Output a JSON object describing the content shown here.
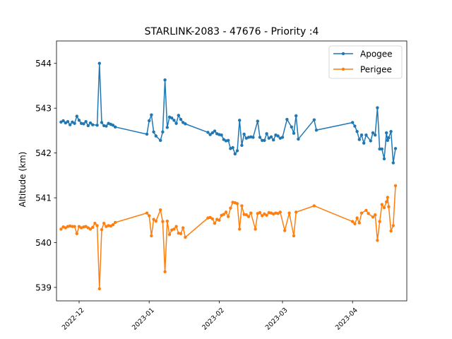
{
  "chart_data": {
    "type": "line",
    "title": "STARLINK-2083 - 47676 - Priority :4",
    "xlabel": "",
    "ylabel": "Altitude (km)",
    "xlim": [
      "2022-11-21",
      "2023-04-25"
    ],
    "ylim": [
      538.7,
      544.5
    ],
    "x_ticks": [
      "2022-12",
      "2023-01",
      "2023-02",
      "2023-03",
      "2023-04"
    ],
    "y_ticks": [
      539,
      540,
      541,
      542,
      543,
      544
    ],
    "legend_position": "top-right",
    "grid": false,
    "series": [
      {
        "name": "Apogee",
        "color": "#1f77b4",
        "points": [
          [
            "2022-11-23",
            542.69
          ],
          [
            "2022-11-24",
            542.72
          ],
          [
            "2022-11-25",
            542.67
          ],
          [
            "2022-11-26",
            542.7
          ],
          [
            "2022-11-27",
            542.63
          ],
          [
            "2022-11-28",
            542.69
          ],
          [
            "2022-11-29",
            542.66
          ],
          [
            "2022-11-30",
            542.82
          ],
          [
            "2022-12-01",
            542.73
          ],
          [
            "2022-12-02",
            542.66
          ],
          [
            "2022-12-03",
            542.65
          ],
          [
            "2022-12-04",
            542.7
          ],
          [
            "2022-12-05",
            542.61
          ],
          [
            "2022-12-06",
            542.67
          ],
          [
            "2022-12-07",
            542.63
          ],
          [
            "2022-12-09",
            542.62
          ],
          [
            "2022-12-10",
            544.0
          ],
          [
            "2022-12-11",
            542.68
          ],
          [
            "2022-12-12",
            542.61
          ],
          [
            "2022-12-13",
            542.6
          ],
          [
            "2022-12-14",
            542.66
          ],
          [
            "2022-12-15",
            542.64
          ],
          [
            "2022-12-16",
            542.62
          ],
          [
            "2022-12-17",
            542.58
          ],
          [
            "2022-12-31",
            542.42
          ],
          [
            "2023-01-01",
            542.72
          ],
          [
            "2023-01-02",
            542.85
          ],
          [
            "2023-01-03",
            542.47
          ],
          [
            "2023-01-04",
            542.38
          ],
          [
            "2023-01-06",
            542.28
          ],
          [
            "2023-01-07",
            542.47
          ],
          [
            "2023-01-08",
            543.63
          ],
          [
            "2023-01-09",
            542.57
          ],
          [
            "2023-01-10",
            542.8
          ],
          [
            "2023-01-11",
            542.78
          ],
          [
            "2023-01-12",
            542.73
          ],
          [
            "2023-01-13",
            542.66
          ],
          [
            "2023-01-14",
            542.84
          ],
          [
            "2023-01-15",
            542.75
          ],
          [
            "2023-01-16",
            542.68
          ],
          [
            "2023-01-17",
            542.65
          ],
          [
            "2023-01-27",
            542.46
          ],
          [
            "2023-01-28",
            542.41
          ],
          [
            "2023-01-29",
            542.45
          ],
          [
            "2023-01-30",
            542.49
          ],
          [
            "2023-01-31",
            542.43
          ],
          [
            "2023-02-01",
            542.41
          ],
          [
            "2023-02-02",
            542.4
          ],
          [
            "2023-02-03",
            542.3
          ],
          [
            "2023-02-04",
            542.27
          ],
          [
            "2023-02-05",
            542.28
          ],
          [
            "2023-02-06",
            542.1
          ],
          [
            "2023-02-07",
            542.12
          ],
          [
            "2023-02-08",
            541.98
          ],
          [
            "2023-02-09",
            542.05
          ],
          [
            "2023-02-10",
            542.73
          ],
          [
            "2023-02-11",
            542.17
          ],
          [
            "2023-02-12",
            542.42
          ],
          [
            "2023-02-13",
            542.33
          ],
          [
            "2023-02-14",
            542.35
          ],
          [
            "2023-02-15",
            542.36
          ],
          [
            "2023-02-16",
            542.35
          ],
          [
            "2023-02-18",
            542.71
          ],
          [
            "2023-02-19",
            542.35
          ],
          [
            "2023-02-20",
            542.28
          ],
          [
            "2023-02-21",
            542.28
          ],
          [
            "2023-02-22",
            542.43
          ],
          [
            "2023-02-23",
            542.33
          ],
          [
            "2023-02-24",
            542.36
          ],
          [
            "2023-02-25",
            542.29
          ],
          [
            "2023-02-26",
            542.4
          ],
          [
            "2023-02-27",
            542.38
          ],
          [
            "2023-02-28",
            542.33
          ],
          [
            "2023-03-01",
            542.35
          ],
          [
            "2023-03-03",
            542.75
          ],
          [
            "2023-03-05",
            542.58
          ],
          [
            "2023-03-06",
            542.44
          ],
          [
            "2023-03-07",
            542.83
          ],
          [
            "2023-03-08",
            542.31
          ],
          [
            "2023-03-15",
            542.74
          ],
          [
            "2023-03-16",
            542.51
          ],
          [
            "2023-04-01",
            542.68
          ],
          [
            "2023-04-02",
            542.6
          ],
          [
            "2023-04-03",
            542.48
          ],
          [
            "2023-04-04",
            542.3
          ],
          [
            "2023-04-05",
            542.4
          ],
          [
            "2023-04-06",
            542.22
          ],
          [
            "2023-04-07",
            542.4
          ],
          [
            "2023-04-09",
            542.27
          ],
          [
            "2023-04-10",
            542.45
          ],
          [
            "2023-04-11",
            542.4
          ],
          [
            "2023-04-12",
            543.01
          ],
          [
            "2023-04-13",
            542.09
          ],
          [
            "2023-04-14",
            542.09
          ],
          [
            "2023-04-15",
            541.87
          ],
          [
            "2023-04-16",
            542.45
          ],
          [
            "2023-04-16T12",
            542.28
          ],
          [
            "2023-04-17",
            542.34
          ],
          [
            "2023-04-18",
            542.48
          ],
          [
            "2023-04-19",
            541.78
          ],
          [
            "2023-04-20",
            542.1
          ]
        ]
      },
      {
        "name": "Perigee",
        "color": "#ff7f0e",
        "points": [
          [
            "2022-11-23",
            540.3
          ],
          [
            "2022-11-24",
            540.35
          ],
          [
            "2022-11-25",
            540.33
          ],
          [
            "2022-11-26",
            540.36
          ],
          [
            "2022-11-27",
            540.37
          ],
          [
            "2022-11-28",
            540.36
          ],
          [
            "2022-11-29",
            540.36
          ],
          [
            "2022-11-30",
            540.2
          ],
          [
            "2022-12-01",
            540.36
          ],
          [
            "2022-12-02",
            540.33
          ],
          [
            "2022-12-03",
            540.35
          ],
          [
            "2022-12-04",
            540.36
          ],
          [
            "2022-12-05",
            540.33
          ],
          [
            "2022-12-06",
            540.3
          ],
          [
            "2022-12-07",
            540.34
          ],
          [
            "2022-12-08",
            540.43
          ],
          [
            "2022-12-09",
            540.38
          ],
          [
            "2022-12-10",
            538.97
          ],
          [
            "2022-12-11",
            540.29
          ],
          [
            "2022-12-12",
            540.43
          ],
          [
            "2022-12-13",
            540.36
          ],
          [
            "2022-12-14",
            540.38
          ],
          [
            "2022-12-15",
            540.37
          ],
          [
            "2022-12-16",
            540.4
          ],
          [
            "2022-12-17",
            540.45
          ],
          [
            "2022-12-31",
            540.66
          ],
          [
            "2023-01-01",
            540.6
          ],
          [
            "2023-01-02",
            540.15
          ],
          [
            "2023-01-03",
            540.52
          ],
          [
            "2023-01-04",
            540.48
          ],
          [
            "2023-01-06",
            540.73
          ],
          [
            "2023-01-07",
            540.47
          ],
          [
            "2023-01-08",
            539.35
          ],
          [
            "2023-01-09",
            540.48
          ],
          [
            "2023-01-10",
            540.18
          ],
          [
            "2023-01-11",
            540.28
          ],
          [
            "2023-01-12",
            540.3
          ],
          [
            "2023-01-13",
            540.36
          ],
          [
            "2023-01-14",
            540.21
          ],
          [
            "2023-01-15",
            540.2
          ],
          [
            "2023-01-16",
            540.33
          ],
          [
            "2023-01-17",
            540.12
          ],
          [
            "2023-01-27",
            540.55
          ],
          [
            "2023-01-28",
            540.56
          ],
          [
            "2023-01-29",
            540.53
          ],
          [
            "2023-01-30",
            540.43
          ],
          [
            "2023-01-31",
            540.52
          ],
          [
            "2023-02-01",
            540.5
          ],
          [
            "2023-02-02",
            540.61
          ],
          [
            "2023-02-03",
            540.63
          ],
          [
            "2023-02-04",
            540.68
          ],
          [
            "2023-02-05",
            540.58
          ],
          [
            "2023-02-06",
            540.77
          ],
          [
            "2023-02-07",
            540.9
          ],
          [
            "2023-02-08",
            540.89
          ],
          [
            "2023-02-09",
            540.87
          ],
          [
            "2023-02-10",
            540.3
          ],
          [
            "2023-02-11",
            540.82
          ],
          [
            "2023-02-12",
            540.63
          ],
          [
            "2023-02-13",
            540.62
          ],
          [
            "2023-02-14",
            540.58
          ],
          [
            "2023-02-15",
            540.66
          ],
          [
            "2023-02-17",
            540.3
          ],
          [
            "2023-02-18",
            540.65
          ],
          [
            "2023-02-19",
            540.67
          ],
          [
            "2023-02-20",
            540.6
          ],
          [
            "2023-02-21",
            540.64
          ],
          [
            "2023-02-22",
            540.61
          ],
          [
            "2023-02-23",
            540.67
          ],
          [
            "2023-02-24",
            540.66
          ],
          [
            "2023-02-25",
            540.64
          ],
          [
            "2023-02-26",
            540.66
          ],
          [
            "2023-02-27",
            540.65
          ],
          [
            "2023-02-28",
            540.68
          ],
          [
            "2023-03-02",
            540.27
          ],
          [
            "2023-03-04",
            540.66
          ],
          [
            "2023-03-06",
            540.15
          ],
          [
            "2023-03-07",
            540.68
          ],
          [
            "2023-03-15",
            540.82
          ],
          [
            "2023-04-01",
            540.47
          ],
          [
            "2023-04-02",
            540.42
          ],
          [
            "2023-04-03",
            540.55
          ],
          [
            "2023-04-04",
            540.44
          ],
          [
            "2023-04-05",
            540.66
          ],
          [
            "2023-04-07",
            540.72
          ],
          [
            "2023-04-08",
            540.65
          ],
          [
            "2023-04-10",
            540.57
          ],
          [
            "2023-04-11",
            540.62
          ],
          [
            "2023-04-12",
            540.05
          ],
          [
            "2023-04-13",
            540.47
          ],
          [
            "2023-04-14",
            540.85
          ],
          [
            "2023-04-15",
            540.78
          ],
          [
            "2023-04-16",
            540.91
          ],
          [
            "2023-04-16T12",
            541.01
          ],
          [
            "2023-04-17",
            540.8
          ],
          [
            "2023-04-18",
            540.26
          ],
          [
            "2023-04-19",
            540.38
          ],
          [
            "2023-04-20",
            541.27
          ]
        ]
      }
    ]
  }
}
